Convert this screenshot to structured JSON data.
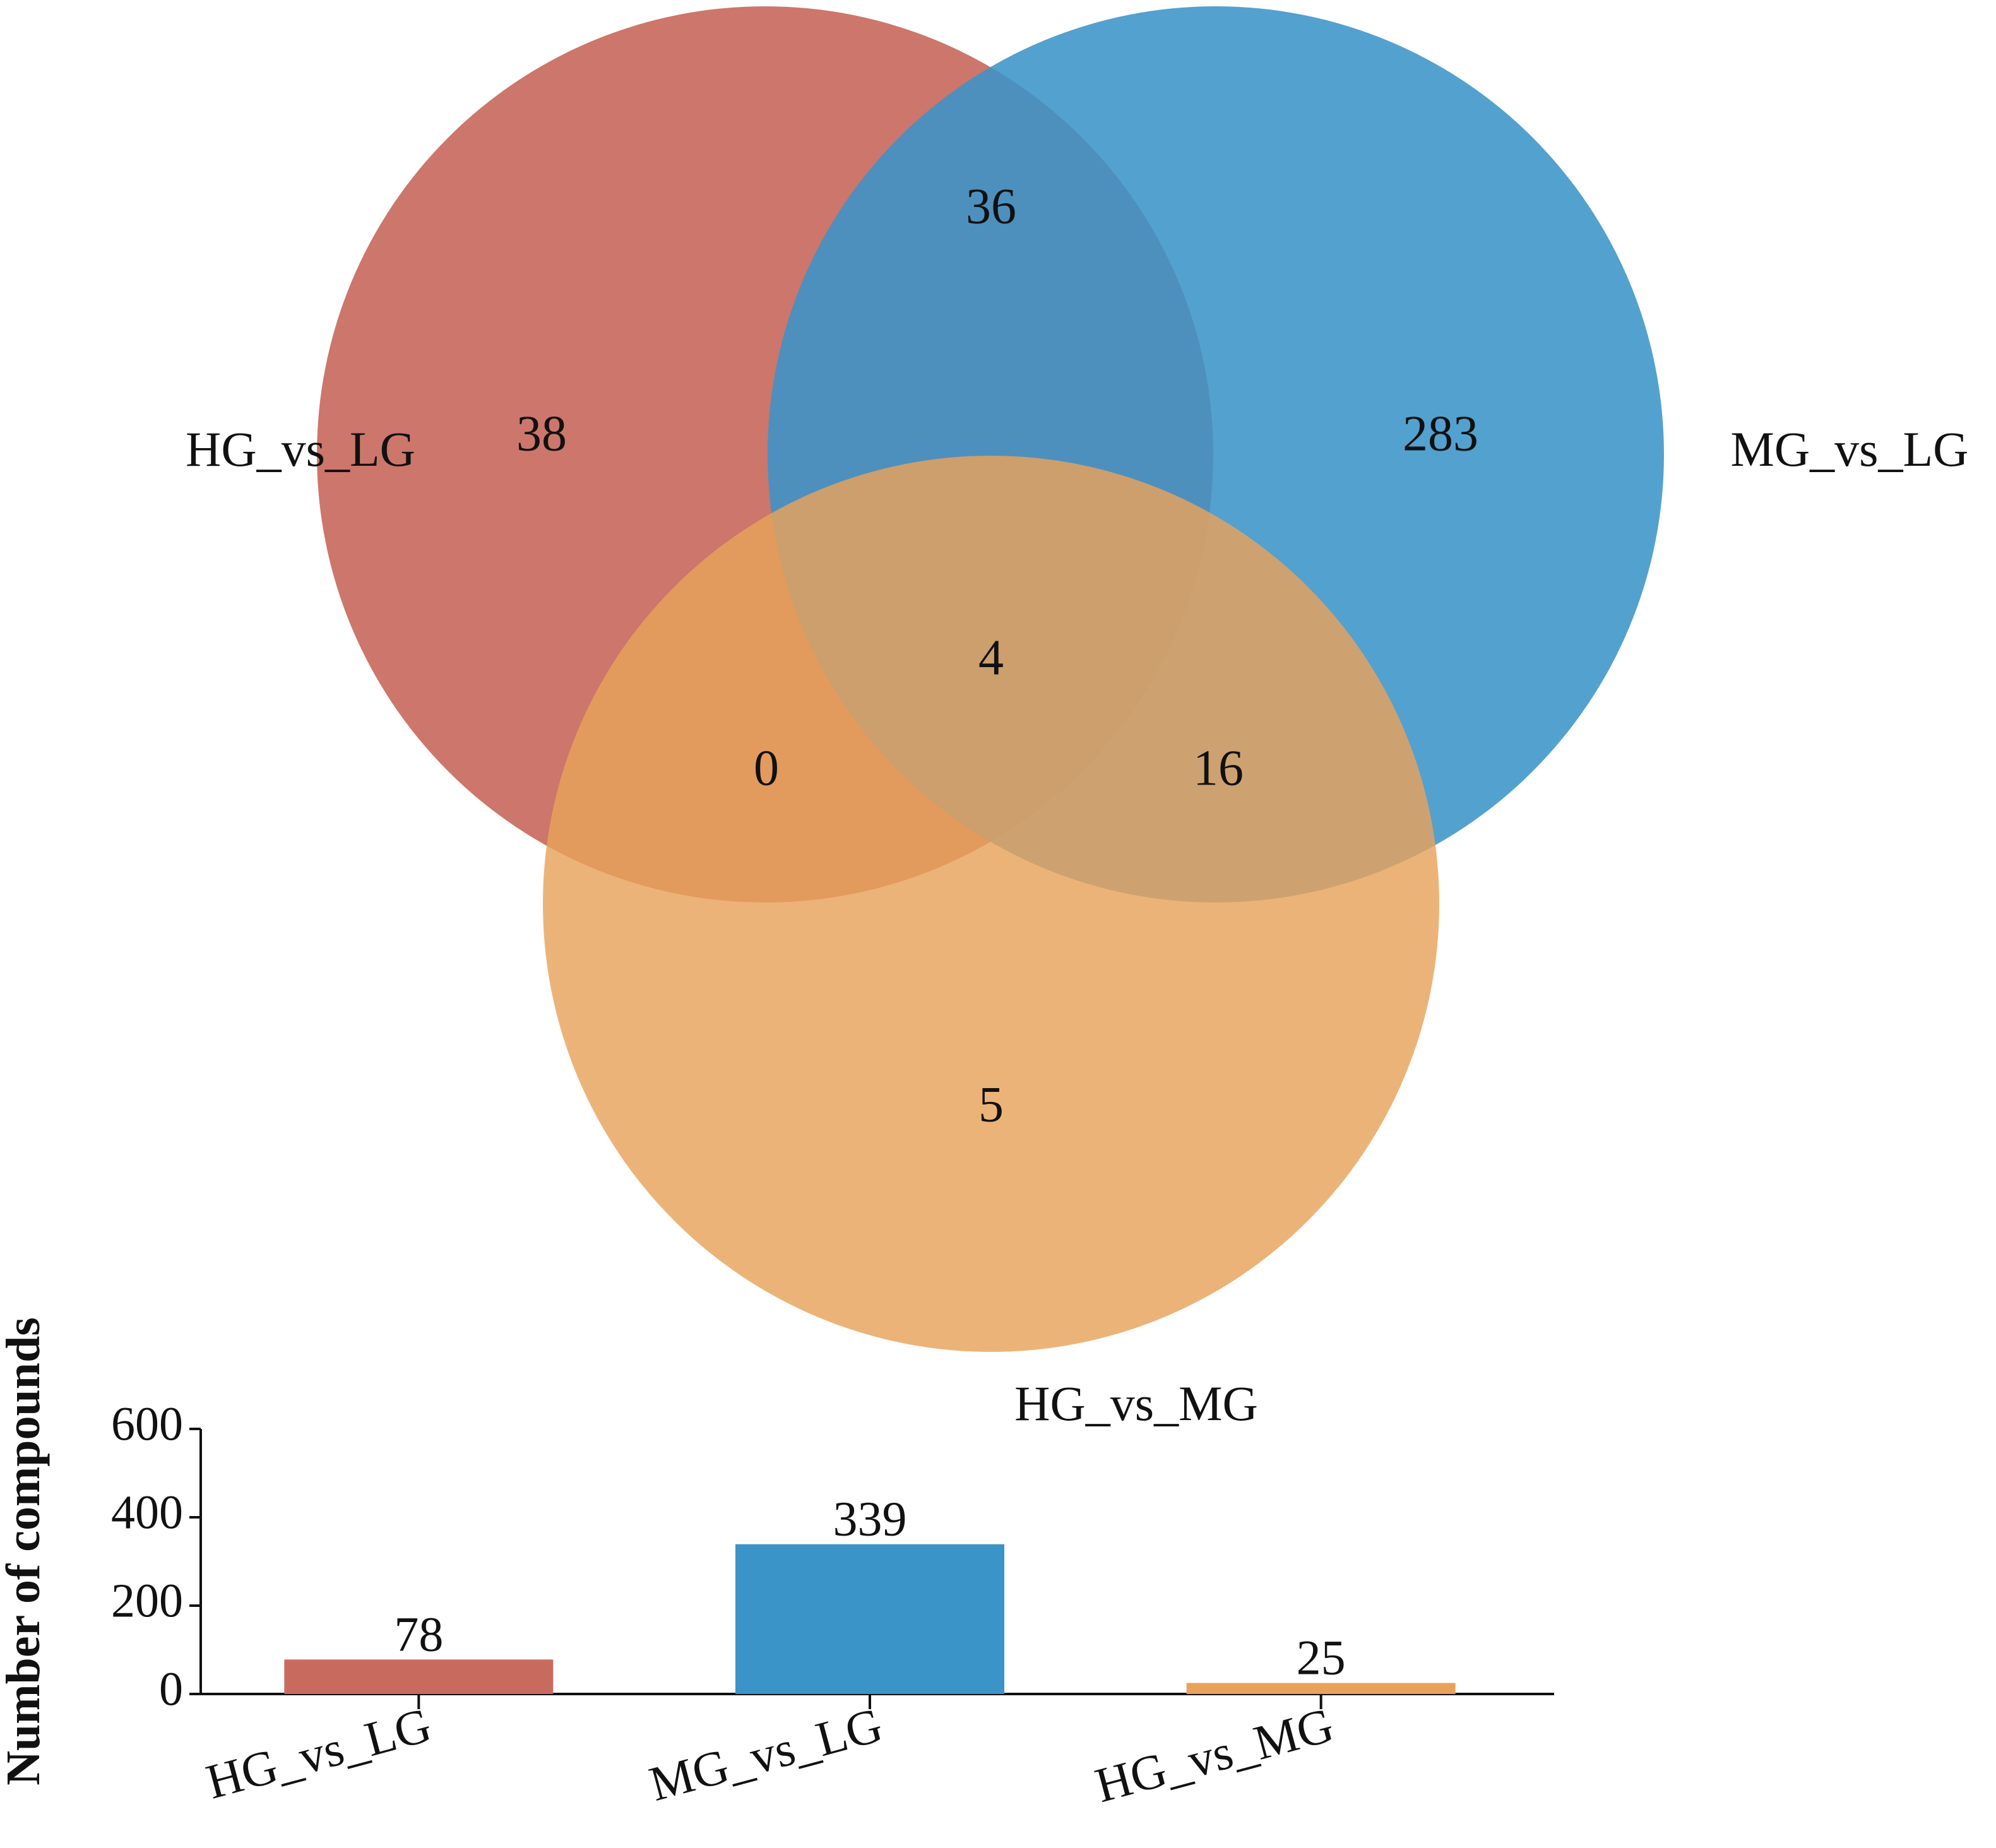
{
  "colors": {
    "set_a": "#C96A5E",
    "set_b": "#3B94C8",
    "set_c": "#E8A25A",
    "axis": "#111111"
  },
  "venn": {
    "set_labels": {
      "a": "HG_vs_LG",
      "b": "MG_vs_LG",
      "c": "HG_vs_MG"
    },
    "regions": {
      "a_only": "38",
      "b_only": "283",
      "c_only": "5",
      "ab_only": "36",
      "ac_only": "0",
      "bc_only": "16",
      "abc": "4"
    }
  },
  "chart_data": {
    "type": "bar",
    "title": "",
    "xlabel": "",
    "ylabel": "Number of compounds",
    "categories": [
      "HG_vs_LG",
      "MG_vs_LG",
      "HG_vs_MG"
    ],
    "values": [
      78,
      339,
      25
    ],
    "data_labels": [
      "78",
      "339",
      "25"
    ],
    "yticks": [
      "0",
      "200",
      "400",
      "600"
    ],
    "ylim": [
      0,
      600
    ],
    "grid": false
  }
}
